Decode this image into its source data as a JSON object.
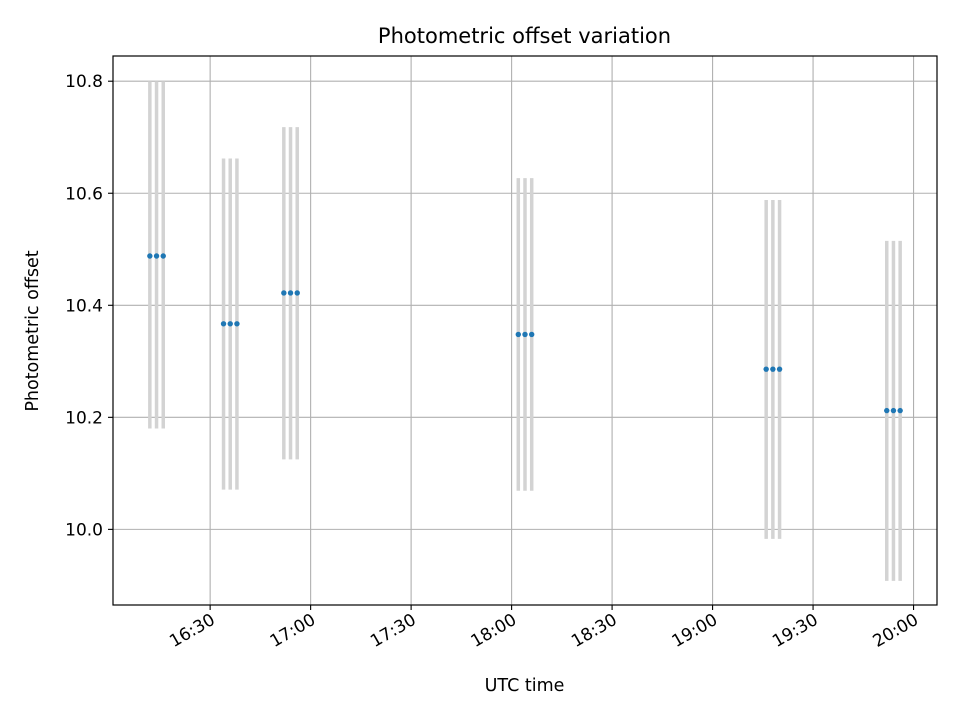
{
  "chart_data": {
    "type": "scatter",
    "title": "Photometric offset variation",
    "xlabel": "UTC time",
    "ylabel": "Photometric offset",
    "xlim": [
      "16:01",
      "20:07"
    ],
    "ylim": [
      9.865,
      10.845
    ],
    "x_ticks": [
      "16:30",
      "17:00",
      "17:30",
      "18:00",
      "18:30",
      "19:00",
      "19:30",
      "20:00"
    ],
    "y_ticks": [
      "10.0",
      "10.2",
      "10.4",
      "10.6",
      "10.8"
    ],
    "grid": true,
    "colors": {
      "point": "#1f77b4",
      "errorbar": "#d3d3d3",
      "grid": "#b0b0b0"
    },
    "series": [
      {
        "points": [
          {
            "x": "16:12",
            "y": 10.488,
            "yerr_low": 10.18,
            "yerr_high": 10.8
          },
          {
            "x": "16:14",
            "y": 10.488,
            "yerr_low": 10.18,
            "yerr_high": 10.8
          },
          {
            "x": "16:16",
            "y": 10.488,
            "yerr_low": 10.18,
            "yerr_high": 10.8
          },
          {
            "x": "16:34",
            "y": 10.367,
            "yerr_low": 10.071,
            "yerr_high": 10.662
          },
          {
            "x": "16:36",
            "y": 10.367,
            "yerr_low": 10.071,
            "yerr_high": 10.662
          },
          {
            "x": "16:38",
            "y": 10.367,
            "yerr_low": 10.071,
            "yerr_high": 10.662
          },
          {
            "x": "16:52",
            "y": 10.422,
            "yerr_low": 10.125,
            "yerr_high": 10.718
          },
          {
            "x": "16:54",
            "y": 10.422,
            "yerr_low": 10.125,
            "yerr_high": 10.718
          },
          {
            "x": "16:56",
            "y": 10.422,
            "yerr_low": 10.125,
            "yerr_high": 10.718
          },
          {
            "x": "18:02",
            "y": 10.348,
            "yerr_low": 10.069,
            "yerr_high": 10.627
          },
          {
            "x": "18:04",
            "y": 10.348,
            "yerr_low": 10.069,
            "yerr_high": 10.627
          },
          {
            "x": "18:06",
            "y": 10.348,
            "yerr_low": 10.069,
            "yerr_high": 10.627
          },
          {
            "x": "19:16",
            "y": 10.286,
            "yerr_low": 9.983,
            "yerr_high": 10.588
          },
          {
            "x": "19:18",
            "y": 10.286,
            "yerr_low": 9.983,
            "yerr_high": 10.588
          },
          {
            "x": "19:20",
            "y": 10.286,
            "yerr_low": 9.983,
            "yerr_high": 10.588
          },
          {
            "x": "19:52",
            "y": 10.212,
            "yerr_low": 9.908,
            "yerr_high": 10.515
          },
          {
            "x": "19:54",
            "y": 10.212,
            "yerr_low": 9.908,
            "yerr_high": 10.515
          },
          {
            "x": "19:56",
            "y": 10.212,
            "yerr_low": 9.908,
            "yerr_high": 10.515
          }
        ]
      }
    ]
  }
}
